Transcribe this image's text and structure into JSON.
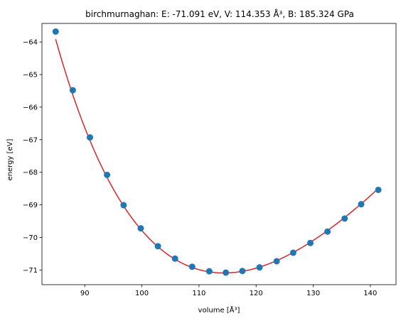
{
  "chart_data": {
    "type": "scatter",
    "title": "birchmurnaghan: E: -71.091 eV, V: 114.353 Å³, B: 185.324 GPa",
    "xlabel": "volume [Å³]",
    "ylabel": "energy [eV]",
    "xlim": [
      82.5,
      144.5
    ],
    "ylim": [
      -71.45,
      -63.43
    ],
    "xticks": [
      90,
      100,
      110,
      120,
      130,
      140
    ],
    "yticks": [
      -64,
      -65,
      -66,
      -67,
      -68,
      -69,
      -70,
      -71
    ],
    "xtick_labels": [
      "90",
      "100",
      "110",
      "120",
      "130",
      "140"
    ],
    "ytick_labels": [
      "−64",
      "−65",
      "−66",
      "−67",
      "−68",
      "−69",
      "−70",
      "−71"
    ],
    "grid": false,
    "points": {
      "color": "#1f77b4",
      "x": [
        84.9,
        87.9,
        90.9,
        93.9,
        96.8,
        99.8,
        102.8,
        105.8,
        108.8,
        111.8,
        114.7,
        117.6,
        120.6,
        123.6,
        126.5,
        129.5,
        132.5,
        135.5,
        138.4,
        141.4
      ],
      "y": [
        -63.68,
        -65.48,
        -66.93,
        -68.08,
        -69.01,
        -69.72,
        -70.27,
        -70.65,
        -70.9,
        -71.04,
        -71.08,
        -71.03,
        -70.92,
        -70.73,
        -70.47,
        -70.17,
        -69.82,
        -69.42,
        -68.98,
        -68.54
      ]
    },
    "fit": {
      "color": "#d62728",
      "E0": -71.091,
      "V0": 114.353,
      "B0_GPa": 185.324
    }
  }
}
